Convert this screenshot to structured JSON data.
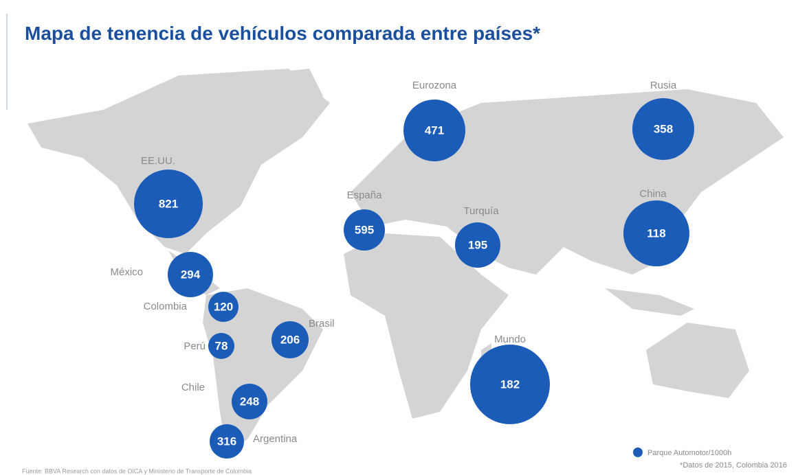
{
  "title": "Mapa de tenencia de vehículos comparada entre países*",
  "points": [
    {
      "label": "Eurozona",
      "value": 471
    },
    {
      "label": "Rusia",
      "value": 358
    },
    {
      "label": "EE.UU.",
      "value": 821
    },
    {
      "label": "España",
      "value": 595
    },
    {
      "label": "Turquía",
      "value": 195
    },
    {
      "label": "China",
      "value": 118
    },
    {
      "label": "México",
      "value": 294
    },
    {
      "label": "Colombia",
      "value": 120
    },
    {
      "label": "Brasil",
      "value": 206
    },
    {
      "label": "Perú",
      "value": 78
    },
    {
      "label": "Chile",
      "value": 248
    },
    {
      "label": "Argentina",
      "value": 316
    },
    {
      "label": "Mundo",
      "value": 182
    }
  ],
  "color": "#1b5cb8",
  "legend": "Parque Automotor/1000h",
  "note": "*Datos de 2015, Colombia 2016",
  "source": "Fuente: BBVA Research con datos de OICA y Ministerio de Transporte de Colombia"
}
